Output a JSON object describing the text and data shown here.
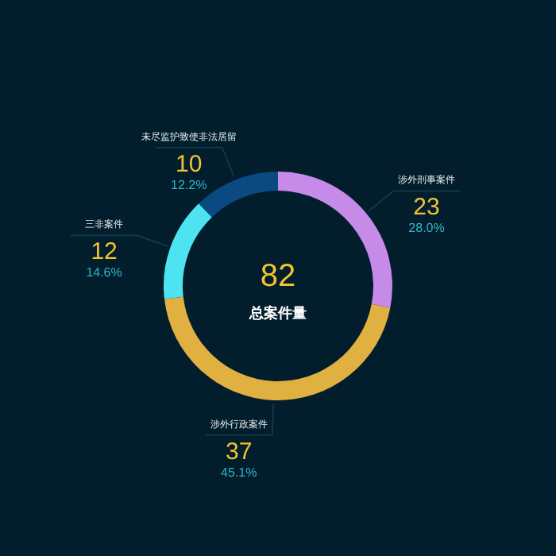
{
  "chart_data": {
    "type": "donut",
    "categories": [
      "涉外刑事案件",
      "涉外行政案件",
      "三非案件",
      "未尽监护致使非法居留"
    ],
    "values": [
      23,
      37,
      12,
      10
    ],
    "colors": [
      "#c68ae8",
      "#e0b040",
      "#4de3f0",
      "#0b4a80"
    ],
    "value_labels": [
      "23\n28.0%",
      "37\n45.1%",
      "12\n14.6%",
      "10\n12.2%"
    ],
    "annotations": [
      "82",
      "总案件量"
    ]
  }
}
